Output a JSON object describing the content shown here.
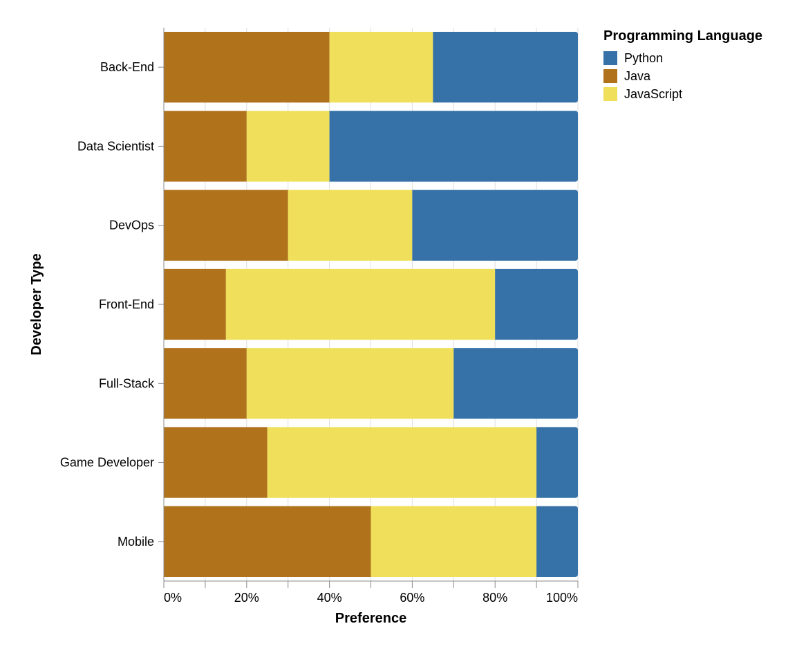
{
  "colors": {
    "Python": "#3672a8",
    "Java": "#b0721b",
    "JavaScript": "#f0df5a",
    "grid": "#dddddd",
    "axis": "#888888"
  },
  "chart_data": {
    "type": "bar",
    "orientation": "horizontal",
    "stacked": "normalized",
    "xlabel": "Preference",
    "ylabel": "Developer Type",
    "xlim": [
      0,
      1
    ],
    "x_ticks": [
      "0%",
      "20%",
      "40%",
      "60%",
      "80%",
      "100%"
    ],
    "x_tick_values": [
      0,
      0.2,
      0.4,
      0.6,
      0.8,
      1.0
    ],
    "grid": true,
    "legend_position": "top-right",
    "legend_title": "Programming Language",
    "categories": [
      "Back-End",
      "Data Scientist",
      "DevOps",
      "Front-End",
      "Full-Stack",
      "Game Developer",
      "Mobile"
    ],
    "stack_order": [
      "Java",
      "JavaScript",
      "Python"
    ],
    "legend_order": [
      "Python",
      "Java",
      "JavaScript"
    ],
    "series": [
      {
        "name": "Python",
        "values": [
          35,
          60,
          40,
          20,
          30,
          10,
          10
        ]
      },
      {
        "name": "Java",
        "values": [
          40,
          20,
          30,
          15,
          20,
          25,
          50
        ]
      },
      {
        "name": "JavaScript",
        "values": [
          25,
          20,
          30,
          65,
          50,
          65,
          40
        ]
      }
    ]
  }
}
